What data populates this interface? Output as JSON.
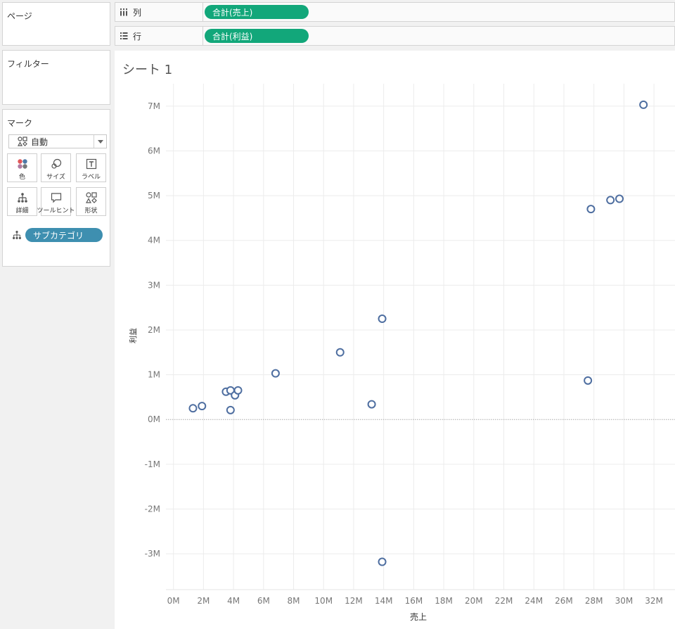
{
  "pages": {
    "title": "ページ"
  },
  "columns_shelf": {
    "label": "列",
    "pill": "合計(売上)"
  },
  "rows_shelf": {
    "label": "行",
    "pill": "合計(利益)"
  },
  "filters": {
    "title": "フィルター"
  },
  "marks": {
    "title": "マーク",
    "type_value": "自動",
    "buttons": {
      "color": "色",
      "size": "サイズ",
      "label": "ラベル",
      "detail": "詳細",
      "tooltip": "ツールヒント",
      "shape": "形状"
    },
    "detail_pill": "サブカテゴリ"
  },
  "sheet": {
    "title": "シート 1"
  },
  "colors": {
    "shelf_pill": "#12a77a",
    "dimension_pill": "#3e8fb0",
    "mark": "#4e6ea0"
  },
  "chart_data": {
    "type": "scatter",
    "xlabel": "売上",
    "ylabel": "利益",
    "xlim": [
      -0.5,
      33.4
    ],
    "ylim": [
      -3.8,
      7.5
    ],
    "x_ticks": [
      0,
      2,
      4,
      6,
      8,
      10,
      12,
      14,
      16,
      18,
      20,
      22,
      24,
      26,
      28,
      30,
      32
    ],
    "x_tick_labels": [
      "0M",
      "2M",
      "4M",
      "6M",
      "8M",
      "10M",
      "12M",
      "14M",
      "16M",
      "18M",
      "20M",
      "22M",
      "24M",
      "26M",
      "28M",
      "30M",
      "32M"
    ],
    "y_ticks": [
      7,
      6,
      5,
      4,
      3,
      2,
      1,
      0,
      -1,
      -2,
      -3
    ],
    "y_tick_labels": [
      "7M",
      "6M",
      "5M",
      "4M",
      "3M",
      "2M",
      "1M",
      "0M",
      "-1M",
      "-2M",
      "-3M"
    ],
    "grid": true,
    "zero_line": true,
    "points": [
      {
        "x": 1.3,
        "y": 0.25
      },
      {
        "x": 1.9,
        "y": 0.3
      },
      {
        "x": 3.5,
        "y": 0.62
      },
      {
        "x": 3.8,
        "y": 0.65
      },
      {
        "x": 3.8,
        "y": 0.21
      },
      {
        "x": 4.1,
        "y": 0.54
      },
      {
        "x": 4.3,
        "y": 0.65
      },
      {
        "x": 6.8,
        "y": 1.03
      },
      {
        "x": 11.1,
        "y": 1.5
      },
      {
        "x": 13.2,
        "y": 0.34
      },
      {
        "x": 13.9,
        "y": 2.25
      },
      {
        "x": 13.9,
        "y": -3.18
      },
      {
        "x": 27.6,
        "y": 0.87
      },
      {
        "x": 27.8,
        "y": 4.7
      },
      {
        "x": 29.1,
        "y": 4.9
      },
      {
        "x": 29.7,
        "y": 4.93
      },
      {
        "x": 31.3,
        "y": 7.03
      }
    ]
  }
}
